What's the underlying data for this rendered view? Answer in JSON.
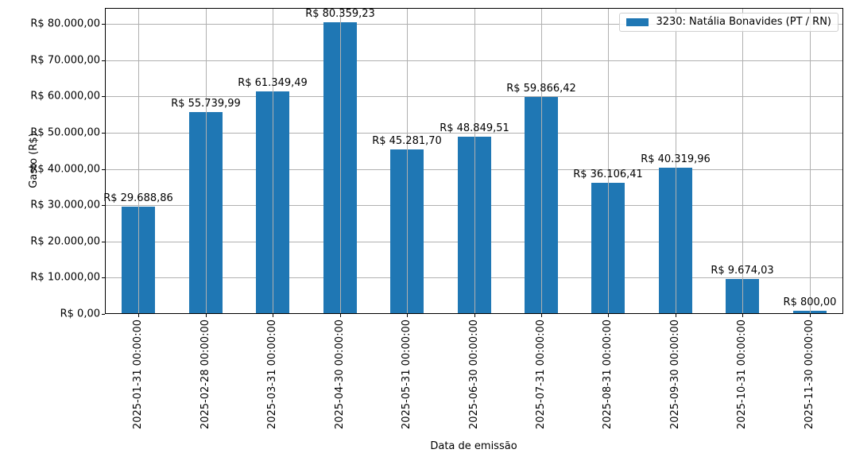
{
  "chart_data": {
    "type": "bar",
    "title": "",
    "xlabel": "Data de emissão",
    "ylabel": "Gasto (R$)",
    "ylim": [
      0,
      84400
    ],
    "grid": true,
    "legend_position": "upper right",
    "bar_color": "#1f77b4",
    "categories": [
      "2025-01-31 00:00:00",
      "2025-02-28 00:00:00",
      "2025-03-31 00:00:00",
      "2025-04-30 00:00:00",
      "2025-05-31 00:00:00",
      "2025-06-30 00:00:00",
      "2025-07-31 00:00:00",
      "2025-08-31 00:00:00",
      "2025-09-30 00:00:00",
      "2025-10-31 00:00:00",
      "2025-11-30 00:00:00"
    ],
    "series": [
      {
        "name": "3230: Natália Bonavides (PT / RN)",
        "values": [
          29688.86,
          55739.99,
          61349.49,
          80359.23,
          45281.7,
          48849.51,
          59866.42,
          36106.41,
          40319.96,
          9674.03,
          800.0
        ],
        "labels": [
          "R$ 29.688,86",
          "R$ 55.739,99",
          "R$ 61.349,49",
          "R$ 80.359,23",
          "R$ 45.281,70",
          "R$ 48.849,51",
          "R$ 59.866,42",
          "R$ 36.106,41",
          "R$ 40.319,96",
          "R$ 9.674,03",
          "R$ 800,00"
        ]
      }
    ],
    "yticks": [
      0,
      10000,
      20000,
      30000,
      40000,
      50000,
      60000,
      70000,
      80000
    ],
    "ytick_labels": [
      "R$ 0,00",
      "R$ 10.000,00",
      "R$ 20.000,00",
      "R$ 30.000,00",
      "R$ 40.000,00",
      "R$ 50.000,00",
      "R$ 60.000,00",
      "R$ 70.000,00",
      "R$ 80.000,00"
    ]
  }
}
